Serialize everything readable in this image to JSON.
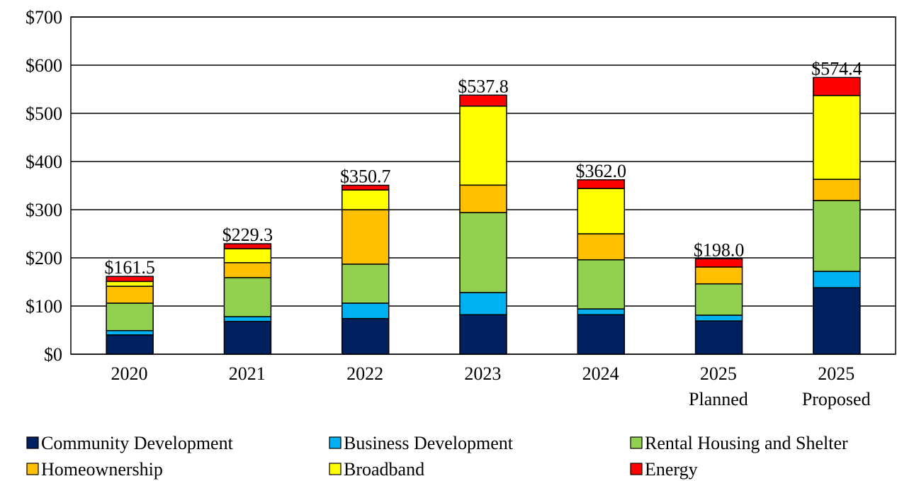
{
  "chart_data": {
    "type": "stacked_bar",
    "categories": [
      "2020",
      "2021",
      "2022",
      "2023",
      "2024",
      "2025\nPlanned",
      "2025\nProposed"
    ],
    "series": [
      {
        "name": "Community Development",
        "color": "#002060",
        "values": [
          40,
          68,
          74,
          82,
          82,
          69,
          138
        ]
      },
      {
        "name": "Business Development",
        "color": "#00b0f0",
        "values": [
          9,
          10,
          32,
          46,
          12,
          12,
          34
        ]
      },
      {
        "name": "Rental Housing and Shelter",
        "color": "#92d050",
        "values": [
          57,
          81,
          81,
          166,
          102,
          65,
          147
        ]
      },
      {
        "name": "Homeownership",
        "color": "#ffc000",
        "values": [
          35,
          31,
          113,
          57,
          54,
          35,
          44
        ]
      },
      {
        "name": "Broadband",
        "color": "#ffff00",
        "values": [
          10,
          29,
          41,
          164,
          94,
          0,
          174
        ]
      },
      {
        "name": "Energy",
        "color": "#ff0000",
        "values": [
          10.5,
          10.3,
          9.7,
          22.8,
          18,
          17,
          37.4
        ]
      }
    ],
    "totals": [
      161.5,
      229.3,
      350.7,
      537.8,
      362.0,
      198.0,
      574.4
    ],
    "total_labels": [
      "$161.5",
      "$229.3",
      "$350.7",
      "$537.8",
      "$362.0",
      "$198.0",
      "$574.4"
    ],
    "ylim": [
      0,
      700
    ],
    "yticks": [
      {
        "value": 0,
        "label": "$0"
      },
      {
        "value": 100,
        "label": "$100"
      },
      {
        "value": 200,
        "label": "$200"
      },
      {
        "value": 300,
        "label": "$300"
      },
      {
        "value": 400,
        "label": "$400"
      },
      {
        "value": 500,
        "label": "$500"
      },
      {
        "value": 600,
        "label": "$600"
      },
      {
        "value": 700,
        "label": "$700"
      }
    ],
    "grid": true,
    "legend": "bottom"
  }
}
